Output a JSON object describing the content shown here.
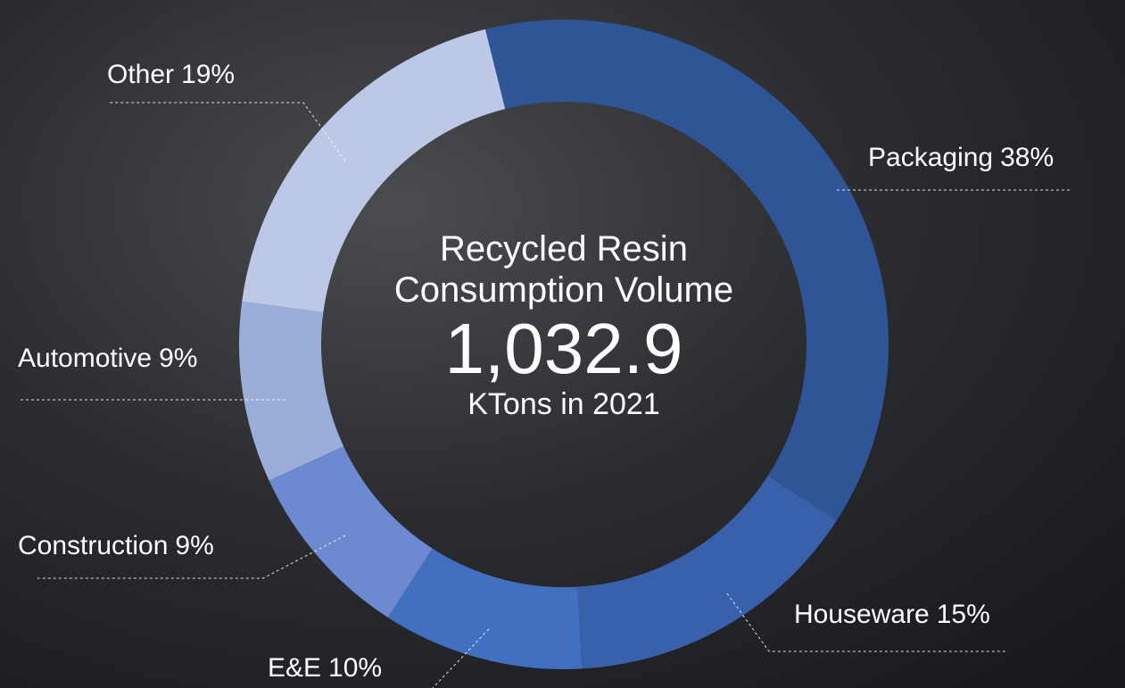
{
  "chart_data": {
    "type": "donut",
    "title": "Recycled Resin Consumption Volume",
    "center_value": "1,032.9",
    "center_unit": "KTons in 2021",
    "categories": [
      "Packaging",
      "Houseware",
      "E&E",
      "Construction",
      "Automotive",
      "Other"
    ],
    "values": [
      38,
      15,
      10,
      9,
      9,
      19
    ],
    "value_labels": [
      "38%",
      "15%",
      "10%",
      "9%",
      "9%",
      "19%"
    ],
    "colors": [
      "#2f5597",
      "#3960aa",
      "#4270c0",
      "#6d89cf",
      "#9badd9",
      "#bdc8e6"
    ]
  }
}
